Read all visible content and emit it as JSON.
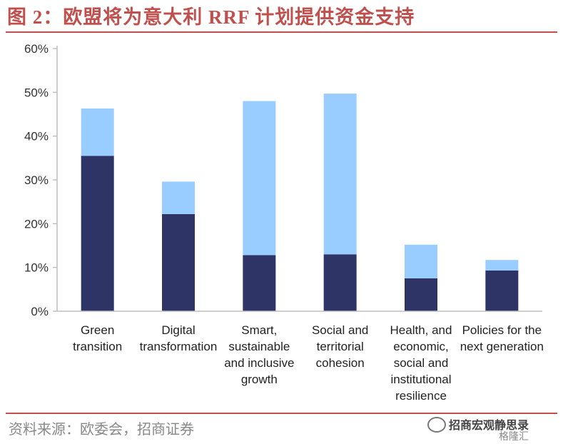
{
  "header": {
    "title": "图 2：欧盟将为意大利 RRF 计划提供资金支持"
  },
  "footer": {
    "source": "资料来源：欧委会，招商证券",
    "watermark_line1": "招商宏观静思录",
    "watermark_line2": "格隆汇"
  },
  "colors": {
    "accent": "#c0504d",
    "series_dark": "#2e3466",
    "series_light": "#99ccff",
    "axis": "#bfbfbf"
  },
  "chart_data": {
    "type": "bar",
    "stacked": true,
    "categories": [
      [
        "Green",
        "transition"
      ],
      [
        "Digital",
        "transformation"
      ],
      [
        "Smart,",
        "sustainable",
        "and inclusive",
        "growth"
      ],
      [
        "Social and",
        "territorial",
        "cohesion"
      ],
      [
        "Health, and",
        "economic,",
        "social and",
        "institutional",
        "resilience"
      ],
      [
        "Policies for the",
        "next generation"
      ]
    ],
    "series": [
      {
        "values": [
          35.5,
          22.2,
          12.8,
          13.0,
          7.5,
          9.3
        ]
      },
      {
        "values": [
          10.8,
          7.4,
          35.2,
          36.7,
          7.7,
          2.4
        ]
      }
    ],
    "ylim": [
      0,
      60
    ],
    "yticks": [
      "0%",
      "10%",
      "20%",
      "30%",
      "40%",
      "50%",
      "60%"
    ],
    "xlabel": "",
    "ylabel": "",
    "grid": false,
    "legend": "none"
  }
}
